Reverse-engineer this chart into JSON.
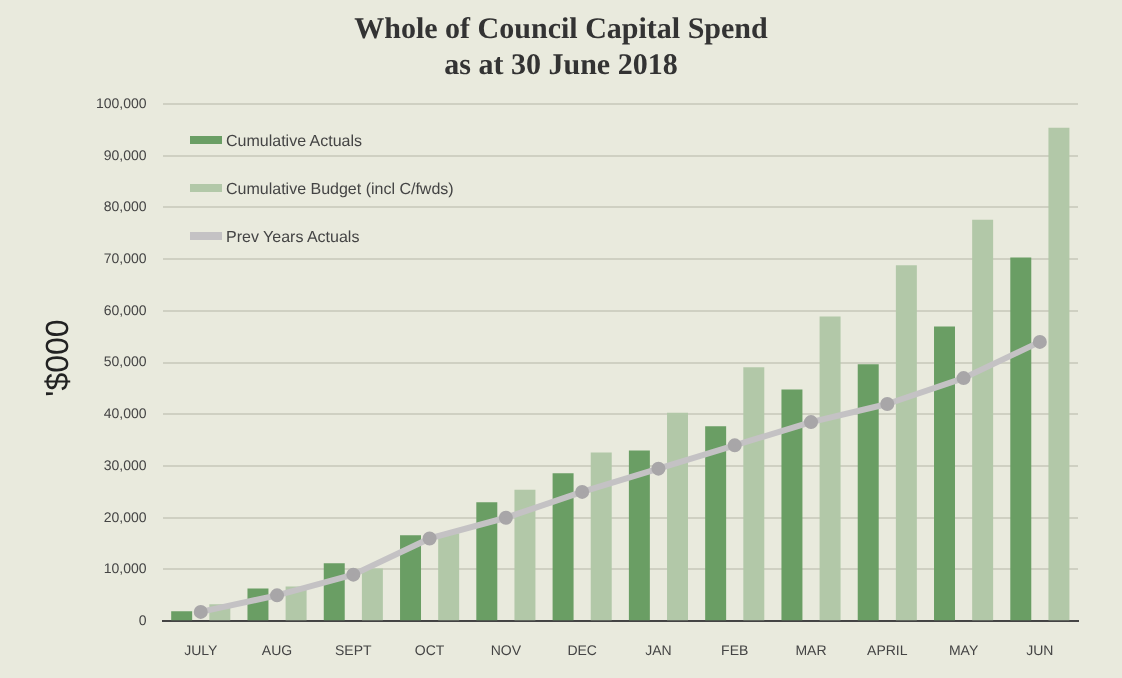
{
  "chart_data": {
    "type": "bar",
    "title": "Whole of Council Capital Spend\nas at 30 June 2018",
    "ylabel": "'$000",
    "categories": [
      "JULY",
      "AUG",
      "SEPT",
      "OCT",
      "NOV",
      "DEC",
      "JAN",
      "FEB",
      "MAR",
      "APRIL",
      "MAY",
      "JUN"
    ],
    "series": [
      {
        "name": "Cumulative Actuals",
        "color": "#6a9e64",
        "values": [
          1900,
          6300,
          11200,
          16600,
          23000,
          28600,
          33000,
          37700,
          44800,
          49700,
          57000,
          70300
        ]
      },
      {
        "name": "Cumulative Budget (incl C/fwds)",
        "color": "#b2c8a8",
        "values": [
          3300,
          6700,
          10200,
          17000,
          25400,
          32600,
          40300,
          49100,
          58900,
          68800,
          77600,
          95400
        ]
      },
      {
        "name": "Prev Years Actuals",
        "type": "line",
        "color": "#c4c2c4",
        "marker": "circle",
        "values": [
          1800,
          5000,
          9000,
          16000,
          20000,
          25000,
          29500,
          34000,
          38500,
          42000,
          47000,
          54000
        ]
      }
    ],
    "ylim": [
      0,
      100000
    ],
    "yticks": [
      0,
      {
        "value": 10000,
        "label": "10,000"
      },
      {
        "value": 20000,
        "label": "20,000"
      },
      {
        "value": 30000,
        "label": "30,000"
      },
      {
        "value": 40000,
        "label": "40,000"
      },
      {
        "value": 50000,
        "label": "50,000"
      },
      {
        "value": 60000,
        "label": "60,000"
      },
      {
        "value": 70000,
        "label": "70,000"
      },
      {
        "value": 80000,
        "label": "80,000"
      },
      {
        "value": 90000,
        "label": "90,000"
      },
      {
        "value": 100000,
        "label": "100,000"
      }
    ],
    "grid": "y",
    "legend": "top left"
  }
}
